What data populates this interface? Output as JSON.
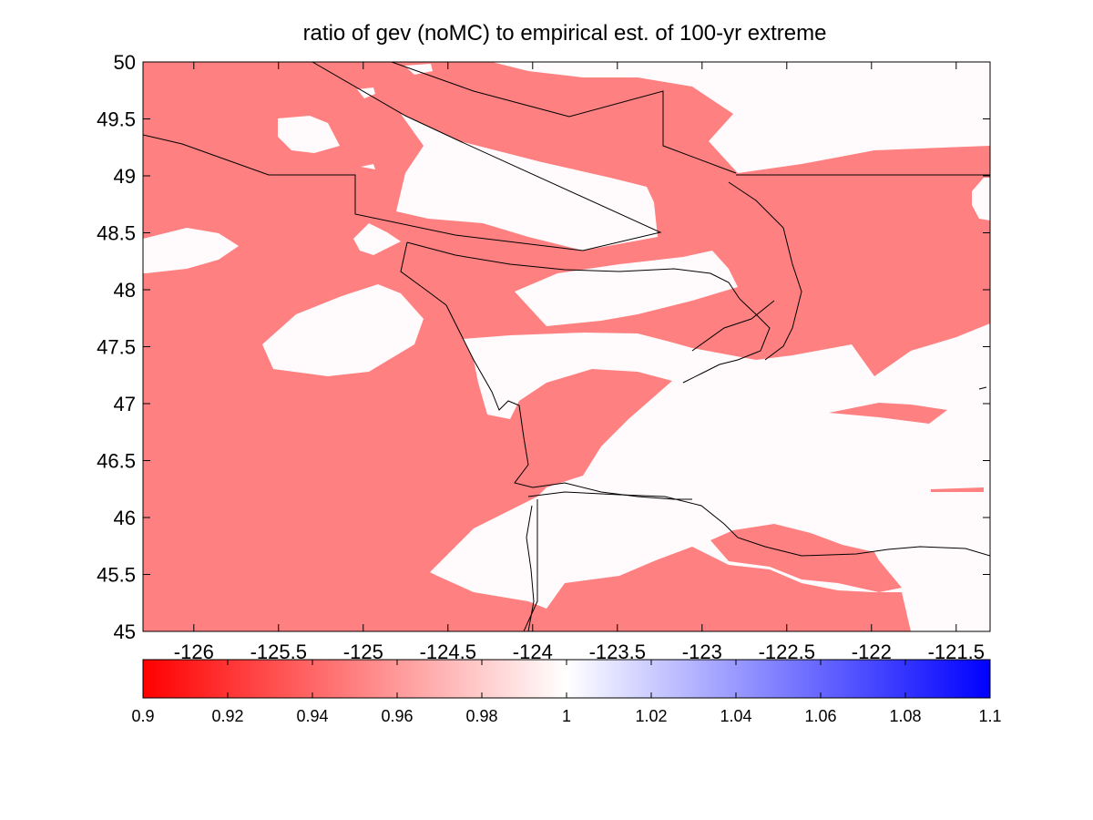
{
  "figure": {
    "title": "ratio of gev (noMC) to empirical est. of 100-yr extreme"
  },
  "map": {
    "lon_range": [
      -126.3,
      -121.3
    ],
    "lat_range": [
      45,
      50
    ],
    "x_ticks": [
      {
        "value": -126,
        "label": "-126"
      },
      {
        "value": -125.5,
        "label": "-125.5"
      },
      {
        "value": -125,
        "label": "-125"
      },
      {
        "value": -124.5,
        "label": "-124.5"
      },
      {
        "value": -124,
        "label": "-124"
      },
      {
        "value": -123.5,
        "label": "-123.5"
      },
      {
        "value": -123,
        "label": "-123"
      },
      {
        "value": -122.5,
        "label": "-122.5"
      },
      {
        "value": -122,
        "label": "-122"
      },
      {
        "value": -121.5,
        "label": "-121.5"
      }
    ],
    "y_ticks": [
      {
        "value": 45,
        "label": "45"
      },
      {
        "value": 45.5,
        "label": "45.5"
      },
      {
        "value": 46,
        "label": "46"
      },
      {
        "value": 46.5,
        "label": "46.5"
      },
      {
        "value": 47,
        "label": "47"
      },
      {
        "value": 47.5,
        "label": "47.5"
      },
      {
        "value": 48,
        "label": "48"
      },
      {
        "value": 48.5,
        "label": "48.5"
      },
      {
        "value": 49,
        "label": "49"
      },
      {
        "value": 49.5,
        "label": "49.5"
      },
      {
        "value": 50,
        "label": "50"
      }
    ],
    "fill_colors": {
      "below_one": "#ff8080",
      "at_one": "#fffbfd"
    }
  },
  "colorbar": {
    "range": [
      0.9,
      1.1
    ],
    "colors": {
      "low": "#ff0000",
      "mid": "#ffffff",
      "high": "#0000ff"
    },
    "ticks": [
      {
        "value": 0.9,
        "label": "0.9"
      },
      {
        "value": 0.92,
        "label": "0.92"
      },
      {
        "value": 0.94,
        "label": "0.94"
      },
      {
        "value": 0.96,
        "label": "0.96"
      },
      {
        "value": 0.98,
        "label": "0.98"
      },
      {
        "value": 1.0,
        "label": "1"
      },
      {
        "value": 1.02,
        "label": "1.02"
      },
      {
        "value": 1.04,
        "label": "1.04"
      },
      {
        "value": 1.06,
        "label": "1.06"
      },
      {
        "value": 1.08,
        "label": "1.08"
      },
      {
        "value": 1.1,
        "label": "1.1"
      }
    ]
  }
}
